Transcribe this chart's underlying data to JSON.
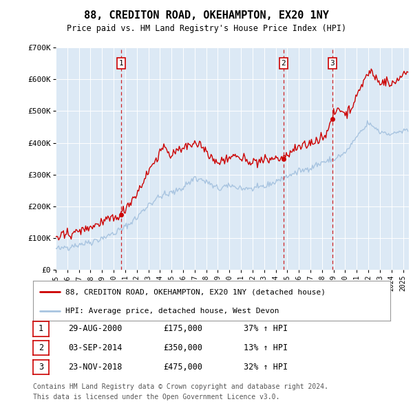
{
  "title": "88, CREDITON ROAD, OKEHAMPTON, EX20 1NY",
  "subtitle": "Price paid vs. HM Land Registry's House Price Index (HPI)",
  "legend_line1": "88, CREDITON ROAD, OKEHAMPTON, EX20 1NY (detached house)",
  "legend_line2": "HPI: Average price, detached house, West Devon",
  "footer1": "Contains HM Land Registry data © Crown copyright and database right 2024.",
  "footer2": "This data is licensed under the Open Government Licence v3.0.",
  "transactions": [
    {
      "num": 1,
      "date": "29-AUG-2000",
      "price": 175000,
      "pct": "37% ↑ HPI",
      "year": 2000.66
    },
    {
      "num": 2,
      "date": "03-SEP-2014",
      "price": 350000,
      "pct": "13% ↑ HPI",
      "year": 2014.67
    },
    {
      "num": 3,
      "date": "23-NOV-2018",
      "price": 475000,
      "pct": "32% ↑ HPI",
      "year": 2018.9
    }
  ],
  "hpi_color": "#a8c4e0",
  "price_color": "#cc0000",
  "plot_bg": "#dce9f5",
  "grid_color": "#ffffff",
  "vline_color": "#cc0000",
  "ylim": [
    0,
    700000
  ],
  "yticks": [
    0,
    100000,
    200000,
    300000,
    400000,
    500000,
    600000,
    700000
  ],
  "xlim_start": 1995.0,
  "xlim_end": 2025.5
}
